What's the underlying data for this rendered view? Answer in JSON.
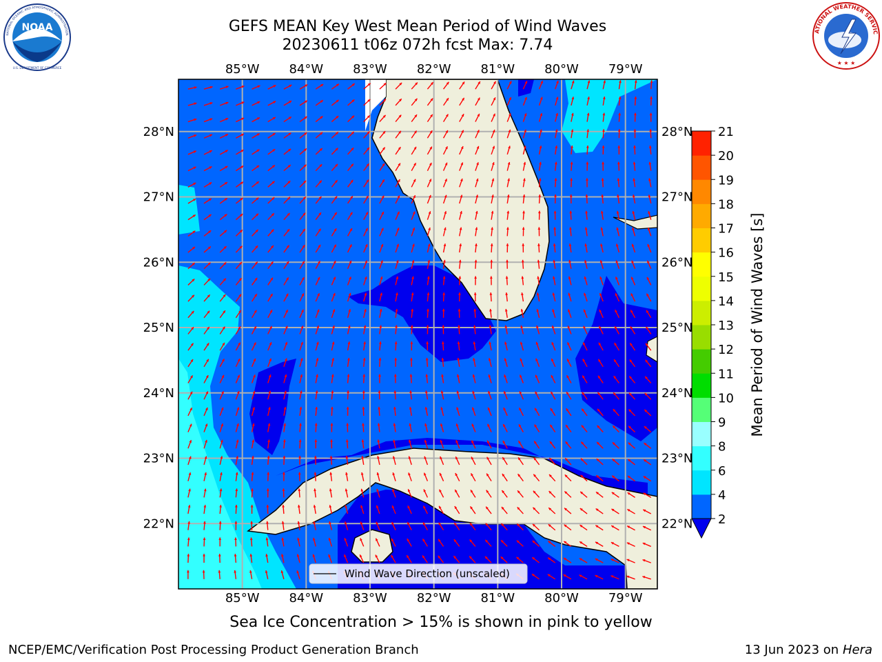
{
  "title": {
    "line1": "GEFS MEAN Key West Mean Period of Wind Waves",
    "line2": "20230611 t06z 072h fcst   Max: 7.74"
  },
  "logos": {
    "left": {
      "name": "NOAA",
      "ring_text": "NATIONAL OCEANIC AND ATMOSPHERIC ADMINISTRATION",
      "ring_bottom": "U.S. DEPARTMENT OF COMMERCE"
    },
    "right": {
      "ring_text": "NATIONAL WEATHER SERVICE"
    }
  },
  "map": {
    "projection": "PlateCarree",
    "lon_range": [
      -86.0,
      -78.5
    ],
    "lat_range": [
      21.0,
      28.8
    ],
    "lon_ticks": [
      "85°W",
      "84°W",
      "83°W",
      "82°W",
      "81°W",
      "80°W",
      "79°W"
    ],
    "lat_ticks": [
      "28°N",
      "27°N",
      "26°N",
      "25°N",
      "24°N",
      "23°N",
      "22°N"
    ],
    "grid": true,
    "land_color": "#efefdc",
    "vector_color": "#ff0000",
    "legend": {
      "label": "Wind Wave Direction (unscaled)",
      "placement": "lower-center"
    }
  },
  "colorbar": {
    "label": "Mean Period of Wind Waves [s]",
    "ticks": [
      "2",
      "4",
      "6",
      "8",
      "9",
      "10",
      "11",
      "12",
      "13",
      "14",
      "15",
      "16",
      "17",
      "18",
      "19",
      "20",
      "21"
    ],
    "colors": [
      "#0066ff",
      "#00e5ff",
      "#33ffff",
      "#99ffff",
      "#55ff77",
      "#00dd00",
      "#44cc00",
      "#99dd00",
      "#ccee00",
      "#eeff00",
      "#ffff00",
      "#ffcc00",
      "#ffaa00",
      "#ff8800",
      "#ff5500",
      "#ff2200"
    ],
    "extend_min_color": "#0000ee"
  },
  "chart_data": {
    "type": "heatmap",
    "variable": "Mean Period of Wind Waves",
    "unit": "s",
    "max": 7.74,
    "field_levels_present": [
      "<2",
      "2-4",
      "4-6",
      "6-8"
    ]
  },
  "subtitle": "Sea Ice Concentration > 15% is shown in pink to yellow",
  "footer": {
    "left": "NCEP/EMC/Verification Post Processing Product Generation Branch",
    "right_date": "13 Jun 2023 on",
    "right_host": "Hera"
  }
}
